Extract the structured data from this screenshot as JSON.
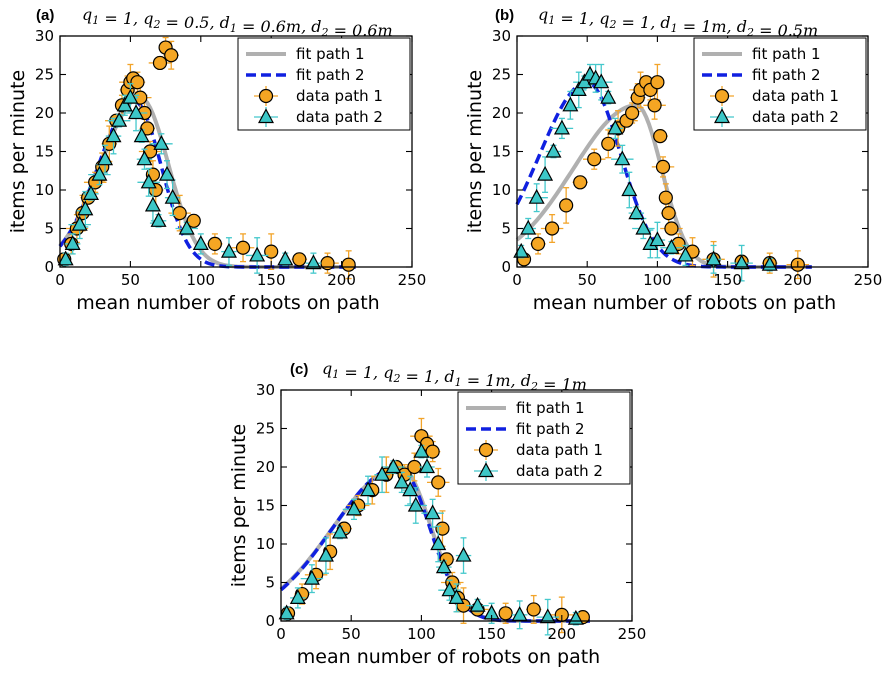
{
  "chart_data": [
    {
      "type": "scatter",
      "tag": "(a)",
      "title": "q1 = 1, q2 = 0.5, d1 = 0.6m, d2 = 0.6m",
      "xlabel": "mean number of robots on path",
      "ylabel": "items per minute",
      "xlim": [
        0,
        250
      ],
      "ylim": [
        0,
        30
      ],
      "xticks": [
        0,
        50,
        100,
        150,
        200,
        250
      ],
      "yticks": [
        0,
        5,
        10,
        15,
        20,
        25,
        30
      ],
      "legend_position": "top-right",
      "fits": [
        {
          "name": "fit path 1",
          "peak_x": 57,
          "peak_y": 22,
          "sigma_left": 28,
          "sigma_right": 20,
          "max_x": 210
        },
        {
          "name": "fit path 2",
          "peak_x": 53,
          "peak_y": 21.5,
          "sigma_left": 26,
          "sigma_right": 19,
          "max_x": 210
        }
      ],
      "series": [
        {
          "name": "data path 1",
          "points": [
            [
              3,
              1
            ],
            [
              8,
              3
            ],
            [
              12,
              5
            ],
            [
              16,
              7
            ],
            [
              20,
              9
            ],
            [
              25,
              11
            ],
            [
              30,
              13
            ],
            [
              35,
              16
            ],
            [
              40,
              19
            ],
            [
              44,
              21
            ],
            [
              48,
              23
            ],
            [
              50,
              24
            ],
            [
              52,
              24.5
            ],
            [
              55,
              24
            ],
            [
              57,
              22
            ],
            [
              60,
              20
            ],
            [
              62,
              18
            ],
            [
              64,
              15
            ],
            [
              66,
              12
            ],
            [
              68,
              10
            ],
            [
              71,
              26.5
            ],
            [
              75,
              28.5
            ],
            [
              79,
              27.5
            ],
            [
              85,
              7
            ],
            [
              95,
              6
            ],
            [
              110,
              3
            ],
            [
              130,
              2.5
            ],
            [
              150,
              2
            ],
            [
              170,
              1
            ],
            [
              190,
              0.5
            ],
            [
              205,
              0.3
            ]
          ]
        },
        {
          "name": "data path 2",
          "points": [
            [
              4,
              1
            ],
            [
              9,
              3
            ],
            [
              14,
              5.5
            ],
            [
              18,
              7.5
            ],
            [
              22,
              9.5
            ],
            [
              28,
              12
            ],
            [
              32,
              14
            ],
            [
              38,
              17
            ],
            [
              42,
              19
            ],
            [
              46,
              21
            ],
            [
              50,
              22
            ],
            [
              54,
              20
            ],
            [
              58,
              17
            ],
            [
              60,
              14
            ],
            [
              63,
              11
            ],
            [
              66,
              8
            ],
            [
              70,
              6
            ],
            [
              72,
              16
            ],
            [
              76,
              12
            ],
            [
              80,
              9
            ],
            [
              90,
              5
            ],
            [
              100,
              3
            ],
            [
              120,
              2
            ],
            [
              140,
              1.5
            ],
            [
              160,
              1
            ],
            [
              180,
              0.5
            ]
          ]
        }
      ]
    },
    {
      "type": "scatter",
      "tag": "(b)",
      "title": "q1 = 1, q2 = 1, d1 = 1m, d2 = 0.5m",
      "xlabel": "mean number of robots on path",
      "ylabel": "items per minute",
      "xlim": [
        0,
        250
      ],
      "ylim": [
        0,
        30
      ],
      "xticks": [
        0,
        50,
        100,
        150,
        200,
        250
      ],
      "yticks": [
        0,
        5,
        10,
        15,
        20,
        25,
        30
      ],
      "legend_position": "top-right",
      "fits": [
        {
          "name": "fit path 1",
          "peak_x": 85,
          "peak_y": 21,
          "sigma_left": 45,
          "sigma_right": 18,
          "max_x": 210
        },
        {
          "name": "fit path 2",
          "peak_x": 50,
          "peak_y": 24,
          "sigma_left": 34,
          "sigma_right": 24,
          "max_x": 210
        }
      ],
      "series": [
        {
          "name": "data path 1",
          "points": [
            [
              5,
              1
            ],
            [
              15,
              3
            ],
            [
              25,
              5
            ],
            [
              35,
              8
            ],
            [
              45,
              11
            ],
            [
              55,
              14
            ],
            [
              65,
              16
            ],
            [
              72,
              18
            ],
            [
              78,
              19
            ],
            [
              82,
              20
            ],
            [
              86,
              22
            ],
            [
              88,
              23
            ],
            [
              92,
              24
            ],
            [
              95,
              23
            ],
            [
              98,
              21
            ],
            [
              100,
              24
            ],
            [
              102,
              17
            ],
            [
              104,
              13
            ],
            [
              106,
              9
            ],
            [
              108,
              7
            ],
            [
              110,
              5
            ],
            [
              115,
              3
            ],
            [
              125,
              2
            ],
            [
              140,
              1
            ],
            [
              160,
              0.7
            ],
            [
              180,
              0.5
            ],
            [
              200,
              0.3
            ]
          ]
        },
        {
          "name": "data path 2",
          "points": [
            [
              3,
              2
            ],
            [
              8,
              5
            ],
            [
              14,
              9
            ],
            [
              20,
              12
            ],
            [
              26,
              15
            ],
            [
              32,
              18
            ],
            [
              38,
              21
            ],
            [
              44,
              23
            ],
            [
              48,
              24
            ],
            [
              52,
              25
            ],
            [
              56,
              24.5
            ],
            [
              60,
              24
            ],
            [
              65,
              22
            ],
            [
              70,
              18
            ],
            [
              75,
              14
            ],
            [
              80,
              10
            ],
            [
              85,
              7
            ],
            [
              90,
              5
            ],
            [
              95,
              3
            ],
            [
              100,
              3.5
            ],
            [
              110,
              2.5
            ],
            [
              120,
              1.5
            ],
            [
              140,
              1
            ],
            [
              160,
              0.5
            ],
            [
              180,
              0.3
            ]
          ]
        }
      ]
    },
    {
      "type": "scatter",
      "tag": "(c)",
      "title": "q1 = 1, q2 = 1, d1 = 1m, d2 = 1m",
      "xlabel": "mean number of robots on path",
      "ylabel": "items per minute",
      "xlim": [
        0,
        250
      ],
      "ylim": [
        0,
        30
      ],
      "xticks": [
        0,
        50,
        100,
        150,
        200,
        250
      ],
      "yticks": [
        0,
        5,
        10,
        15,
        20,
        25,
        30
      ],
      "legend_position": "top-right",
      "fits": [
        {
          "name": "fit path 1",
          "peak_x": 85,
          "peak_y": 20,
          "sigma_left": 48,
          "sigma_right": 22,
          "max_x": 220
        },
        {
          "name": "fit path 2",
          "peak_x": 84,
          "peak_y": 20,
          "sigma_left": 47,
          "sigma_right": 22,
          "max_x": 220
        }
      ],
      "series": [
        {
          "name": "data path 1",
          "points": [
            [
              5,
              1
            ],
            [
              15,
              3.5
            ],
            [
              25,
              6
            ],
            [
              35,
              9
            ],
            [
              45,
              12
            ],
            [
              55,
              15
            ],
            [
              65,
              17
            ],
            [
              75,
              19
            ],
            [
              82,
              20
            ],
            [
              88,
              19
            ],
            [
              95,
              20
            ],
            [
              100,
              24
            ],
            [
              104,
              23
            ],
            [
              108,
              22
            ],
            [
              112,
              18
            ],
            [
              115,
              12
            ],
            [
              118,
              8
            ],
            [
              122,
              5
            ],
            [
              126,
              3
            ],
            [
              130,
              2
            ],
            [
              140,
              1.5
            ],
            [
              160,
              1
            ],
            [
              180,
              1.5
            ],
            [
              200,
              0.8
            ],
            [
              215,
              0.5
            ]
          ]
        },
        {
          "name": "data path 2",
          "points": [
            [
              4,
              1
            ],
            [
              12,
              3
            ],
            [
              22,
              5.5
            ],
            [
              32,
              8.5
            ],
            [
              42,
              11.5
            ],
            [
              52,
              14.5
            ],
            [
              62,
              17
            ],
            [
              72,
              19
            ],
            [
              80,
              20
            ],
            [
              86,
              18
            ],
            [
              92,
              17
            ],
            [
              96,
              15
            ],
            [
              100,
              22
            ],
            [
              104,
              20
            ],
            [
              108,
              14
            ],
            [
              112,
              10
            ],
            [
              116,
              7
            ],
            [
              120,
              4
            ],
            [
              125,
              3
            ],
            [
              130,
              8.5
            ],
            [
              140,
              2
            ],
            [
              150,
              1
            ],
            [
              170,
              0.8
            ],
            [
              190,
              0.5
            ],
            [
              210,
              0.3
            ]
          ]
        }
      ]
    }
  ],
  "colors": {
    "fit_path_1": "#b0b0b0",
    "fit_path_2": "#1020e0",
    "data_path_1": "#f5a623",
    "data_path_2": "#3cc7c7",
    "errbar_path_1": "#f2a42a",
    "errbar_path_2": "#45c8cc"
  }
}
